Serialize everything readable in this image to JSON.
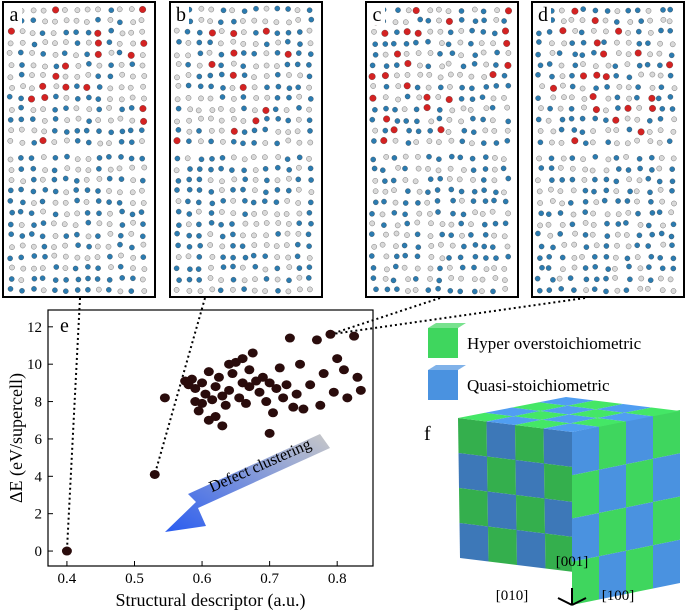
{
  "panels": [
    {
      "label": "a"
    },
    {
      "label": "b"
    },
    {
      "label": "c"
    },
    {
      "label": "d"
    }
  ],
  "chart_data": {
    "type": "scatter",
    "panel_label": "e",
    "xlabel": "Structural descriptor (a.u.)",
    "ylabel": "ΔE (eV/supercell)",
    "annotation": "Defect clustering",
    "xlim": [
      0.372,
      0.853
    ],
    "ylim": [
      -0.8,
      12.9
    ],
    "xticks": [
      0.4,
      0.5,
      0.6,
      0.7,
      0.8
    ],
    "yticks": [
      0,
      2,
      4,
      6,
      8,
      10,
      12
    ],
    "series": [
      {
        "color": "#2a0c0c",
        "x": [
          0.4,
          0.53,
          0.79,
          0.545,
          0.575,
          0.58,
          0.585,
          0.59,
          0.59,
          0.595,
          0.6,
          0.6,
          0.605,
          0.61,
          0.615,
          0.62,
          0.62,
          0.625,
          0.63,
          0.63,
          0.635,
          0.64,
          0.645,
          0.65,
          0.655,
          0.66,
          0.66,
          0.665,
          0.67,
          0.67,
          0.675,
          0.68,
          0.685,
          0.69,
          0.695,
          0.7,
          0.7,
          0.705,
          0.71,
          0.715,
          0.72,
          0.725,
          0.73,
          0.735,
          0.74,
          0.745,
          0.75,
          0.76,
          0.77,
          0.775,
          0.78,
          0.795,
          0.8,
          0.81,
          0.815,
          0.825,
          0.83,
          0.835,
          0.64,
          0.61
        ],
        "values": [
          0.0,
          4.1,
          11.6,
          8.2,
          9.1,
          8.9,
          9.2,
          8.7,
          8.0,
          7.5,
          9.0,
          7.9,
          8.4,
          9.6,
          8.1,
          7.2,
          8.8,
          9.3,
          8.3,
          6.7,
          7.8,
          8.6,
          9.5,
          10.1,
          8.2,
          10.3,
          9.0,
          7.9,
          8.8,
          9.7,
          10.6,
          9.1,
          8.5,
          9.3,
          8.0,
          9.0,
          6.3,
          7.4,
          8.7,
          9.8,
          8.2,
          8.9,
          11.4,
          7.7,
          8.4,
          10.0,
          7.6,
          8.9,
          11.3,
          7.8,
          9.5,
          8.5,
          10.3,
          9.7,
          8.2,
          11.5,
          9.3,
          8.6,
          10.0,
          7.0
        ]
      }
    ]
  },
  "cube": {
    "panel_label": "f",
    "legend": [
      {
        "name": "Hyper overstoichiometric",
        "color": "#3fd65e"
      },
      {
        "name": "Quasi-stoichiometric",
        "color": "#4a92e0"
      }
    ],
    "axes": [
      "[001]",
      "[010]",
      "[100]"
    ]
  }
}
